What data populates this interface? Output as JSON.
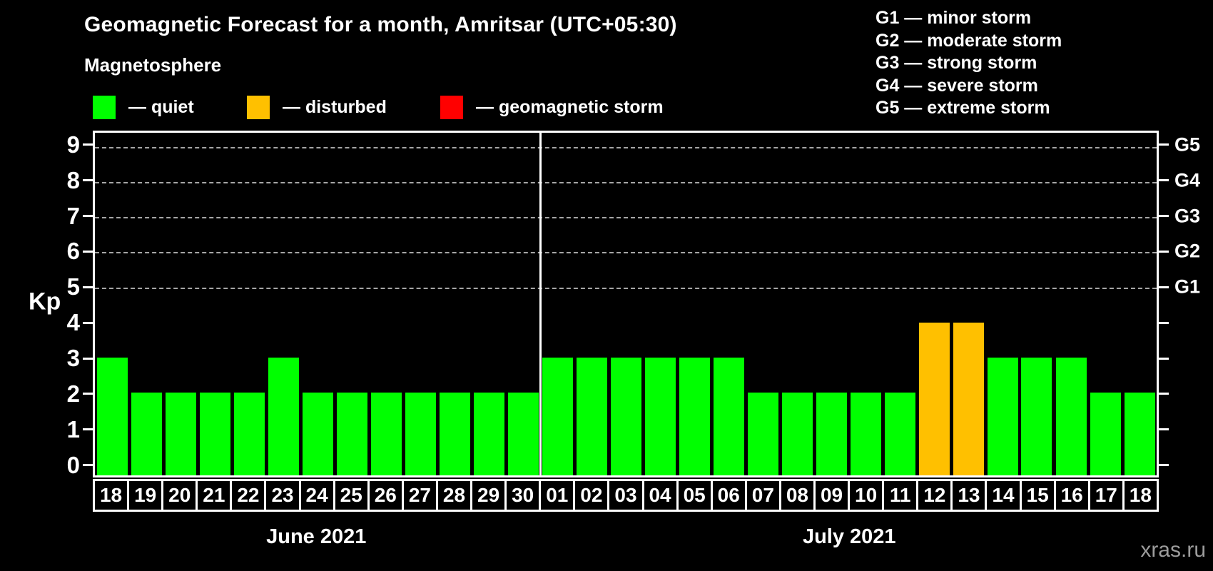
{
  "title": "Geomagnetic Forecast for a month, Amritsar (UTC+05:30)",
  "subtitle": "Magnetosphere",
  "legend": {
    "items": [
      {
        "key": "quiet",
        "label": "— quiet",
        "color": "#00ff00"
      },
      {
        "key": "disturbed",
        "label": "— disturbed",
        "color": "#ffc000"
      },
      {
        "key": "storm",
        "label": "— geomagnetic storm",
        "color": "#ff0000"
      }
    ]
  },
  "g_scale_legend": {
    "lines": [
      "G1 — minor storm",
      "G2 — moderate storm",
      "G3 — strong storm",
      "G4 — severe storm",
      "G5 — extreme storm"
    ]
  },
  "watermark": "xras.ru",
  "chart_data": {
    "type": "bar",
    "title": "Geomagnetic Forecast for a month, Amritsar (UTC+05:30)",
    "ylabel": "Kp",
    "ylim": [
      0,
      9
    ],
    "yticks": [
      0,
      1,
      2,
      3,
      4,
      5,
      6,
      7,
      8,
      9
    ],
    "gridlines_kp": [
      5,
      6,
      7,
      8,
      9
    ],
    "grid": "dashed horizontal at G-storm levels only",
    "right_axis_labels": [
      {
        "text": "G1",
        "kp": 5
      },
      {
        "text": "G2",
        "kp": 6
      },
      {
        "text": "G3",
        "kp": 7
      },
      {
        "text": "G4",
        "kp": 8
      },
      {
        "text": "G5",
        "kp": 9
      }
    ],
    "status_colors": {
      "quiet": "#00ff00",
      "disturbed": "#ffc000",
      "storm": "#ff0000"
    },
    "groups": [
      {
        "month": "June 2021",
        "days": [
          {
            "day": "18",
            "kp": 3,
            "status": "quiet"
          },
          {
            "day": "19",
            "kp": 2,
            "status": "quiet"
          },
          {
            "day": "20",
            "kp": 2,
            "status": "quiet"
          },
          {
            "day": "21",
            "kp": 2,
            "status": "quiet"
          },
          {
            "day": "22",
            "kp": 2,
            "status": "quiet"
          },
          {
            "day": "23",
            "kp": 3,
            "status": "quiet"
          },
          {
            "day": "24",
            "kp": 2,
            "status": "quiet"
          },
          {
            "day": "25",
            "kp": 2,
            "status": "quiet"
          },
          {
            "day": "26",
            "kp": 2,
            "status": "quiet"
          },
          {
            "day": "27",
            "kp": 2,
            "status": "quiet"
          },
          {
            "day": "28",
            "kp": 2,
            "status": "quiet"
          },
          {
            "day": "29",
            "kp": 2,
            "status": "quiet"
          },
          {
            "day": "30",
            "kp": 2,
            "status": "quiet"
          }
        ]
      },
      {
        "month": "July 2021",
        "days": [
          {
            "day": "01",
            "kp": 3,
            "status": "quiet"
          },
          {
            "day": "02",
            "kp": 3,
            "status": "quiet"
          },
          {
            "day": "03",
            "kp": 3,
            "status": "quiet"
          },
          {
            "day": "04",
            "kp": 3,
            "status": "quiet"
          },
          {
            "day": "05",
            "kp": 3,
            "status": "quiet"
          },
          {
            "day": "06",
            "kp": 3,
            "status": "quiet"
          },
          {
            "day": "07",
            "kp": 2,
            "status": "quiet"
          },
          {
            "day": "08",
            "kp": 2,
            "status": "quiet"
          },
          {
            "day": "09",
            "kp": 2,
            "status": "quiet"
          },
          {
            "day": "10",
            "kp": 2,
            "status": "quiet"
          },
          {
            "day": "11",
            "kp": 2,
            "status": "quiet"
          },
          {
            "day": "12",
            "kp": 4,
            "status": "disturbed"
          },
          {
            "day": "13",
            "kp": 4,
            "status": "disturbed"
          },
          {
            "day": "14",
            "kp": 3,
            "status": "quiet"
          },
          {
            "day": "15",
            "kp": 3,
            "status": "quiet"
          },
          {
            "day": "16",
            "kp": 3,
            "status": "quiet"
          },
          {
            "day": "17",
            "kp": 2,
            "status": "quiet"
          },
          {
            "day": "18",
            "kp": 2,
            "status": "quiet"
          }
        ]
      }
    ]
  }
}
